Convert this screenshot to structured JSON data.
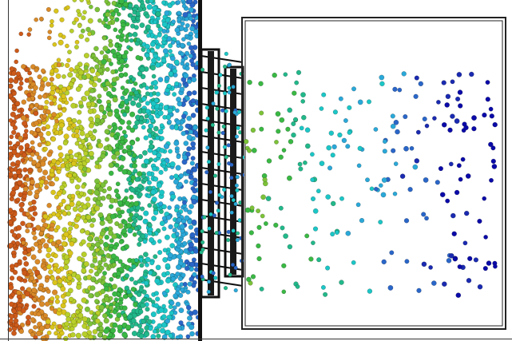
{
  "image": {
    "subject": "particle-simulation-render",
    "palette": {
      "background": "#ffffff",
      "frame": "#222222",
      "wall": "#111111",
      "particle_scale": [
        "#cc5a1a",
        "#d98a28",
        "#d9c41c",
        "#b8cf2a",
        "#7cc238",
        "#3ab844",
        "#22b88a",
        "#1cc6c6",
        "#2aa8d8",
        "#2a66c8",
        "#1a2ab0",
        "#0a0aa8"
      ]
    }
  }
}
